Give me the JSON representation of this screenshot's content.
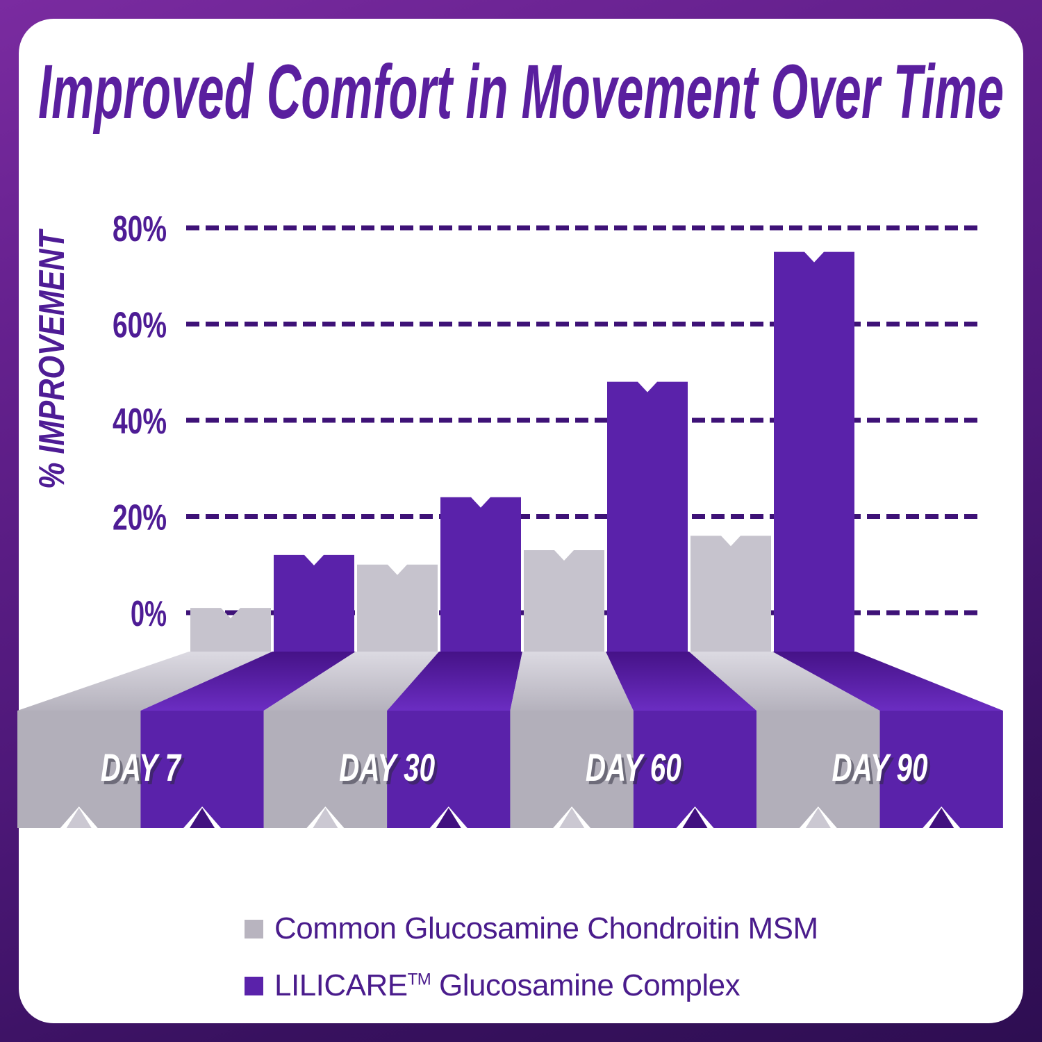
{
  "title": "Improved Comfort in Movement Over Time",
  "chart_data": {
    "type": "bar",
    "categories": [
      "DAY 7",
      "DAY 30",
      "DAY 60",
      "DAY 90"
    ],
    "series": [
      {
        "name": "Common Glucosamine Chondroitin MSM",
        "color": "#B8B4BF",
        "values": [
          1,
          10,
          13,
          16
        ]
      },
      {
        "name": "LILICARE™ Glucosamine Complex",
        "color": "#5A22AA",
        "values": [
          12,
          24,
          48,
          75
        ]
      }
    ],
    "ylabel": "% IMPROVEMENT",
    "yticks": [
      0,
      20,
      40,
      60,
      80
    ],
    "ytick_labels": [
      "0%",
      "20%",
      "40%",
      "60%",
      "80%"
    ],
    "ylim": [
      0,
      88
    ],
    "grid": "dashed-horizontal",
    "legend_position": "bottom",
    "style": "3d-perspective-columns"
  },
  "legend": {
    "items": [
      {
        "label": "Common Glucosamine Chondroitin MSM",
        "color": "#B8B4BF"
      },
      {
        "brand": "LILICARE",
        "tm": "TM",
        "rest": " Glucosamine Complex",
        "color": "#5A22AA"
      }
    ]
  },
  "colors": {
    "title_text": "#5A1F9F",
    "axis_text": "#4E1C95",
    "gridline": "#3E1277",
    "gray_bar": "#C6C3CD",
    "gray_front": "#B2AFBA",
    "purple_bar": "#5A22AA",
    "purple_slant_dark": "#451287",
    "day_label_text": "#FFFFFF",
    "card_background": "#FFFFFF",
    "border_top": "#7A2BA0",
    "border_bottom": "#2E0E52"
  }
}
